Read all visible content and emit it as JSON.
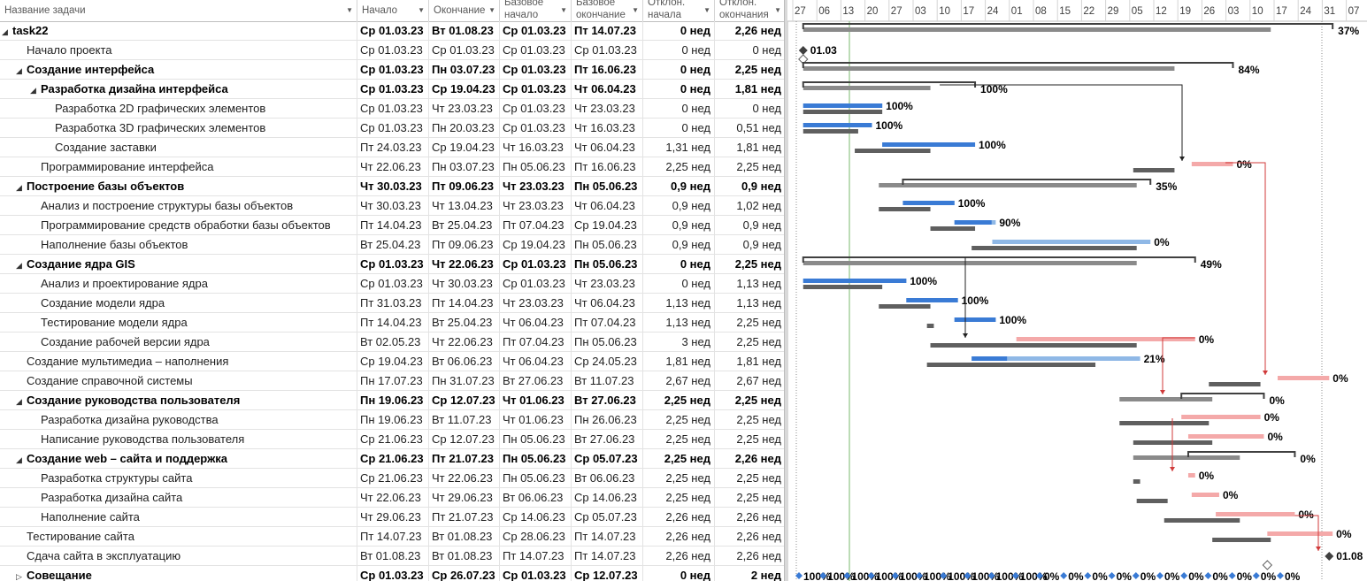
{
  "columns": [
    {
      "key": "name",
      "label": "Название задачи"
    },
    {
      "key": "start",
      "label": "Начало"
    },
    {
      "key": "finish",
      "label": "Окончание"
    },
    {
      "key": "bstart",
      "label": "Базовое начало"
    },
    {
      "key": "bfinish",
      "label": "Базовое окончание"
    },
    {
      "key": "vstart",
      "label": "Отклон. начала"
    },
    {
      "key": "vfinish",
      "label": "Отклон. окончания"
    }
  ],
  "timeline": [
    "27",
    "06",
    "13",
    "20",
    "27",
    "03",
    "10",
    "17",
    "24",
    "01",
    "08",
    "15",
    "22",
    "29",
    "05",
    "12",
    "19",
    "26",
    "03",
    "10",
    "17",
    "24",
    "31",
    "07"
  ],
  "tasks": [
    {
      "name": "task22",
      "level": 0,
      "summary": true,
      "start": "Ср 01.03.23",
      "finish": "Вт 01.08.23",
      "bstart": "Ср 01.03.23",
      "bfinish": "Пт 14.07.23",
      "vstart": "0 нед",
      "vfinish": "2,26 нед",
      "label": "37%"
    },
    {
      "name": "Начало проекта",
      "level": 1,
      "summary": false,
      "start": "Ср 01.03.23",
      "finish": "Ср 01.03.23",
      "bstart": "Ср 01.03.23",
      "bfinish": "Ср 01.03.23",
      "vstart": "0 нед",
      "vfinish": "0 нед",
      "label": "01.03"
    },
    {
      "name": "Создание интерфейса",
      "level": 1,
      "summary": true,
      "start": "Ср 01.03.23",
      "finish": "Пн 03.07.23",
      "bstart": "Ср 01.03.23",
      "bfinish": "Пт 16.06.23",
      "vstart": "0 нед",
      "vfinish": "2,25 нед",
      "label": "84%"
    },
    {
      "name": "Разработка дизайна интерфейса",
      "level": 2,
      "summary": true,
      "start": "Ср 01.03.23",
      "finish": "Ср 19.04.23",
      "bstart": "Ср 01.03.23",
      "bfinish": "Чт 06.04.23",
      "vstart": "0 нед",
      "vfinish": "1,81 нед",
      "label": "100%"
    },
    {
      "name": "Разработка 2D графических элементов",
      "level": 3,
      "summary": false,
      "start": "Ср 01.03.23",
      "finish": "Чт 23.03.23",
      "bstart": "Ср 01.03.23",
      "bfinish": "Чт 23.03.23",
      "vstart": "0 нед",
      "vfinish": "0 нед",
      "label": "100%"
    },
    {
      "name": "Разработка 3D графических элементов",
      "level": 3,
      "summary": false,
      "start": "Ср 01.03.23",
      "finish": "Пн 20.03.23",
      "bstart": "Ср 01.03.23",
      "bfinish": "Чт 16.03.23",
      "vstart": "0 нед",
      "vfinish": "0,51 нед",
      "label": "100%"
    },
    {
      "name": "Создание заставки",
      "level": 3,
      "summary": false,
      "start": "Пт 24.03.23",
      "finish": "Ср 19.04.23",
      "bstart": "Чт 16.03.23",
      "bfinish": "Чт 06.04.23",
      "vstart": "1,31 нед",
      "vfinish": "1,81 нед",
      "label": "100%"
    },
    {
      "name": "Программирование интерфейса",
      "level": 2,
      "summary": false,
      "start": "Чт 22.06.23",
      "finish": "Пн 03.07.23",
      "bstart": "Пн 05.06.23",
      "bfinish": "Пт 16.06.23",
      "vstart": "2,25 нед",
      "vfinish": "2,25 нед",
      "label": "0%"
    },
    {
      "name": "Построение базы объектов",
      "level": 1,
      "summary": true,
      "start": "Чт 30.03.23",
      "finish": "Пт 09.06.23",
      "bstart": "Чт 23.03.23",
      "bfinish": "Пн 05.06.23",
      "vstart": "0,9 нед",
      "vfinish": "0,9 нед",
      "label": "35%"
    },
    {
      "name": "Анализ и построение структуры базы объектов",
      "level": 2,
      "summary": false,
      "start": "Чт 30.03.23",
      "finish": "Чт 13.04.23",
      "bstart": "Чт 23.03.23",
      "bfinish": "Чт 06.04.23",
      "vstart": "0,9 нед",
      "vfinish": "1,02 нед",
      "label": "100%"
    },
    {
      "name": "Программирование средств обработки базы объектов",
      "level": 2,
      "summary": false,
      "start": "Пт 14.04.23",
      "finish": "Вт 25.04.23",
      "bstart": "Пт 07.04.23",
      "bfinish": "Ср 19.04.23",
      "vstart": "0,9 нед",
      "vfinish": "0,9 нед",
      "label": "90%"
    },
    {
      "name": "Наполнение базы объектов",
      "level": 2,
      "summary": false,
      "start": "Вт 25.04.23",
      "finish": "Пт 09.06.23",
      "bstart": "Ср 19.04.23",
      "bfinish": "Пн 05.06.23",
      "vstart": "0,9 нед",
      "vfinish": "0,9 нед",
      "label": "0%"
    },
    {
      "name": "Создание ядра GIS",
      "level": 1,
      "summary": true,
      "start": "Ср 01.03.23",
      "finish": "Чт 22.06.23",
      "bstart": "Ср 01.03.23",
      "bfinish": "Пн 05.06.23",
      "vstart": "0 нед",
      "vfinish": "2,25 нед",
      "label": "49%"
    },
    {
      "name": "Анализ и проектирование ядра",
      "level": 2,
      "summary": false,
      "start": "Ср 01.03.23",
      "finish": "Чт 30.03.23",
      "bstart": "Ср 01.03.23",
      "bfinish": "Чт 23.03.23",
      "vstart": "0 нед",
      "vfinish": "1,13 нед",
      "label": "100%"
    },
    {
      "name": "Создание модели ядра",
      "level": 2,
      "summary": false,
      "start": "Пт 31.03.23",
      "finish": "Пт 14.04.23",
      "bstart": "Чт 23.03.23",
      "bfinish": "Чт 06.04.23",
      "vstart": "1,13 нед",
      "vfinish": "1,13 нед",
      "label": "100%"
    },
    {
      "name": "Тестирование модели ядра",
      "level": 2,
      "summary": false,
      "start": "Пт 14.04.23",
      "finish": "Вт 25.04.23",
      "bstart": "Чт 06.04.23",
      "bfinish": "Пт 07.04.23",
      "vstart": "1,13 нед",
      "vfinish": "2,25 нед",
      "label": "100%"
    },
    {
      "name": "Создание рабочей версии ядра",
      "level": 2,
      "summary": false,
      "start": "Вт 02.05.23",
      "finish": "Чт 22.06.23",
      "bstart": "Пт 07.04.23",
      "bfinish": "Пн 05.06.23",
      "vstart": "3 нед",
      "vfinish": "2,25 нед",
      "label": "0%"
    },
    {
      "name": "Создание мультимедиа – наполнения",
      "level": 1,
      "summary": false,
      "start": "Ср 19.04.23",
      "finish": "Вт 06.06.23",
      "bstart": "Чт 06.04.23",
      "bfinish": "Ср 24.05.23",
      "vstart": "1,81 нед",
      "vfinish": "1,81 нед",
      "label": "21%"
    },
    {
      "name": "Создание справочной системы",
      "level": 1,
      "summary": false,
      "start": "Пн 17.07.23",
      "finish": "Пн 31.07.23",
      "bstart": "Вт 27.06.23",
      "bfinish": "Вт 11.07.23",
      "vstart": "2,67 нед",
      "vfinish": "2,67 нед",
      "label": "0%"
    },
    {
      "name": "Создание руководства пользователя",
      "level": 1,
      "summary": true,
      "start": "Пн 19.06.23",
      "finish": "Ср 12.07.23",
      "bstart": "Чт 01.06.23",
      "bfinish": "Вт 27.06.23",
      "vstart": "2,25 нед",
      "vfinish": "2,25 нед",
      "label": "0%"
    },
    {
      "name": "Разработка дизайна руководства",
      "level": 2,
      "summary": false,
      "start": "Пн 19.06.23",
      "finish": "Вт 11.07.23",
      "bstart": "Чт 01.06.23",
      "bfinish": "Пн 26.06.23",
      "vstart": "2,25 нед",
      "vfinish": "2,25 нед",
      "label": "0%"
    },
    {
      "name": "Написание руководства пользователя",
      "level": 2,
      "summary": false,
      "start": "Ср 21.06.23",
      "finish": "Ср 12.07.23",
      "bstart": "Пн 05.06.23",
      "bfinish": "Вт 27.06.23",
      "vstart": "2,25 нед",
      "vfinish": "2,25 нед",
      "label": "0%"
    },
    {
      "name": "Создание web – сайта и поддержка",
      "level": 1,
      "summary": true,
      "start": "Ср 21.06.23",
      "finish": "Пт 21.07.23",
      "bstart": "Пн 05.06.23",
      "bfinish": "Ср 05.07.23",
      "vstart": "2,25 нед",
      "vfinish": "2,26 нед",
      "label": "0%"
    },
    {
      "name": "Разработка структуры сайта",
      "level": 2,
      "summary": false,
      "start": "Ср 21.06.23",
      "finish": "Чт 22.06.23",
      "bstart": "Пн 05.06.23",
      "bfinish": "Вт 06.06.23",
      "vstart": "2,25 нед",
      "vfinish": "2,25 нед",
      "label": "0%"
    },
    {
      "name": "Разработка дизайна сайта",
      "level": 2,
      "summary": false,
      "start": "Чт 22.06.23",
      "finish": "Чт 29.06.23",
      "bstart": "Вт 06.06.23",
      "bfinish": "Ср 14.06.23",
      "vstart": "2,25 нед",
      "vfinish": "2,25 нед",
      "label": "0%"
    },
    {
      "name": "Наполнение сайта",
      "level": 2,
      "summary": false,
      "start": "Чт 29.06.23",
      "finish": "Пт 21.07.23",
      "bstart": "Ср 14.06.23",
      "bfinish": "Ср 05.07.23",
      "vstart": "2,26 нед",
      "vfinish": "2,26 нед",
      "label": "0%"
    },
    {
      "name": "Тестирование сайта",
      "level": 1,
      "summary": false,
      "start": "Пт 14.07.23",
      "finish": "Вт 01.08.23",
      "bstart": "Ср 28.06.23",
      "bfinish": "Пт 14.07.23",
      "vstart": "2,26 нед",
      "vfinish": "2,26 нед",
      "label": "0%"
    },
    {
      "name": "Сдача сайта в эксплуатацию",
      "level": 1,
      "summary": false,
      "start": "Вт 01.08.23",
      "finish": "Вт 01.08.23",
      "bstart": "Пт 14.07.23",
      "bfinish": "Пт 14.07.23",
      "vstart": "2,26 нед",
      "vfinish": "2,26 нед",
      "label": "01.08"
    },
    {
      "name": "Совещание",
      "level": 1,
      "summary": true,
      "collapsed": true,
      "start": "Ср 01.03.23",
      "finish": "Ср 26.07.23",
      "bstart": "Ср 01.03.23",
      "bfinish": "Ср 12.07.23",
      "vstart": "0 нед",
      "vfinish": "2 нед",
      "label": ""
    }
  ],
  "meeting_labels": [
    "100%",
    "100%",
    "100%",
    "100%",
    "100%",
    "100%",
    "100%",
    "100%",
    "100%",
    "100%",
    "0%",
    "0%",
    "0%",
    "0%",
    "0%",
    "0%",
    "0%",
    "0%",
    "0%",
    "0%",
    "0%"
  ],
  "colors": {
    "done": "#3a7bd5",
    "todo": "#8fb8e6",
    "late": "#f4a9a9",
    "baseline": "#5f5f5f",
    "summary": "#7f7f7f",
    "critical": "#d03a3a",
    "today": "#7ab86d"
  }
}
